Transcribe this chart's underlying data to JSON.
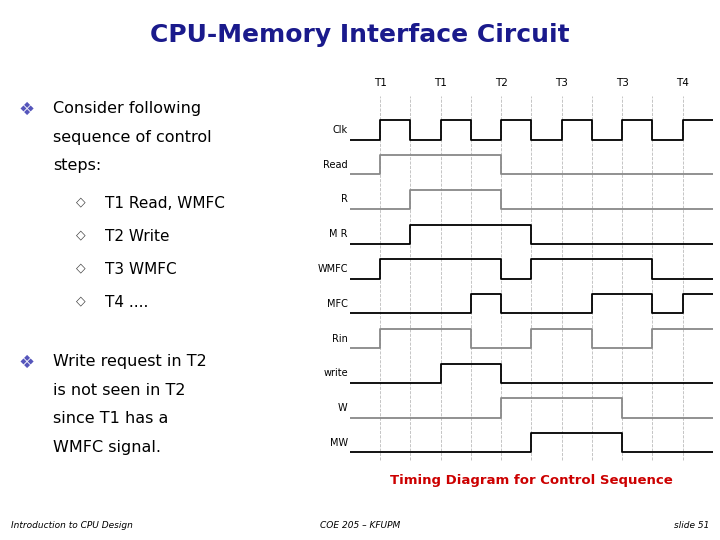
{
  "title": "CPU-Memory Interface Circuit",
  "title_color": "#1a1a8c",
  "title_bg": "#c8c8f0",
  "slide_bg": "#ffffff",
  "footer_bg": "#ffffaa",
  "footer_left": "Introduction to CPU Design",
  "footer_center": "COE 205 – KFUPM",
  "footer_right": "slide 51",
  "timing_caption": "Timing Diagram for Control Sequence",
  "timing_caption_color": "#cc0000",
  "signals": [
    "Clk",
    "Read",
    "R",
    "M R",
    "WMFC",
    "MFC",
    "Rin",
    "write",
    "W",
    "MW"
  ],
  "t_labels": [
    "T1",
    "T1",
    "T2",
    "T3",
    "T3",
    "T4"
  ],
  "num_cols": 12,
  "signal_data": {
    "Clk": [
      0,
      1,
      0,
      1,
      0,
      1,
      0,
      1,
      0,
      1,
      0,
      1
    ],
    "Read": [
      0,
      1,
      1,
      1,
      1,
      0,
      0,
      0,
      0,
      0,
      0,
      0
    ],
    "R": [
      0,
      0,
      1,
      1,
      1,
      0,
      0,
      0,
      0,
      0,
      0,
      0
    ],
    "M R": [
      0,
      0,
      1,
      1,
      1,
      1,
      0,
      0,
      0,
      0,
      0,
      0
    ],
    "WMFC": [
      0,
      1,
      1,
      1,
      1,
      0,
      1,
      1,
      1,
      1,
      0,
      0
    ],
    "MFC": [
      0,
      0,
      0,
      0,
      1,
      0,
      0,
      0,
      1,
      1,
      0,
      1
    ],
    "Rin": [
      0,
      1,
      1,
      1,
      0,
      0,
      1,
      1,
      0,
      0,
      1,
      1
    ],
    "write": [
      0,
      0,
      0,
      1,
      1,
      0,
      0,
      0,
      0,
      0,
      0,
      0
    ],
    "W": [
      0,
      0,
      0,
      0,
      0,
      1,
      1,
      1,
      1,
      0,
      0,
      0
    ],
    "MW": [
      0,
      0,
      0,
      0,
      0,
      0,
      1,
      1,
      1,
      0,
      0,
      0
    ]
  },
  "signal_colors": {
    "Clk": "#000000",
    "Read": "#888888",
    "R": "#888888",
    "M R": "#000000",
    "WMFC": "#000000",
    "MFC": "#000000",
    "Rin": "#888888",
    "write": "#000000",
    "W": "#888888",
    "MW": "#000000"
  },
  "vline_color": "#bbbbbb",
  "bullet1_symbol": "❖",
  "bullet1_line1": "Consider following",
  "bullet1_line2": "sequence of control",
  "bullet1_line3": "steps:",
  "sub_symbol": "◇",
  "sub_items": [
    "T1 Read, WMFC",
    "T2 Write",
    "T3 WMFC",
    "T4 ...."
  ],
  "bullet2_symbol": "❖",
  "bullet2_line1": "Write request in T2",
  "bullet2_line2": "is not seen in T2",
  "bullet2_line3": "since T1 has a",
  "bullet2_line4": "WMFC signal."
}
